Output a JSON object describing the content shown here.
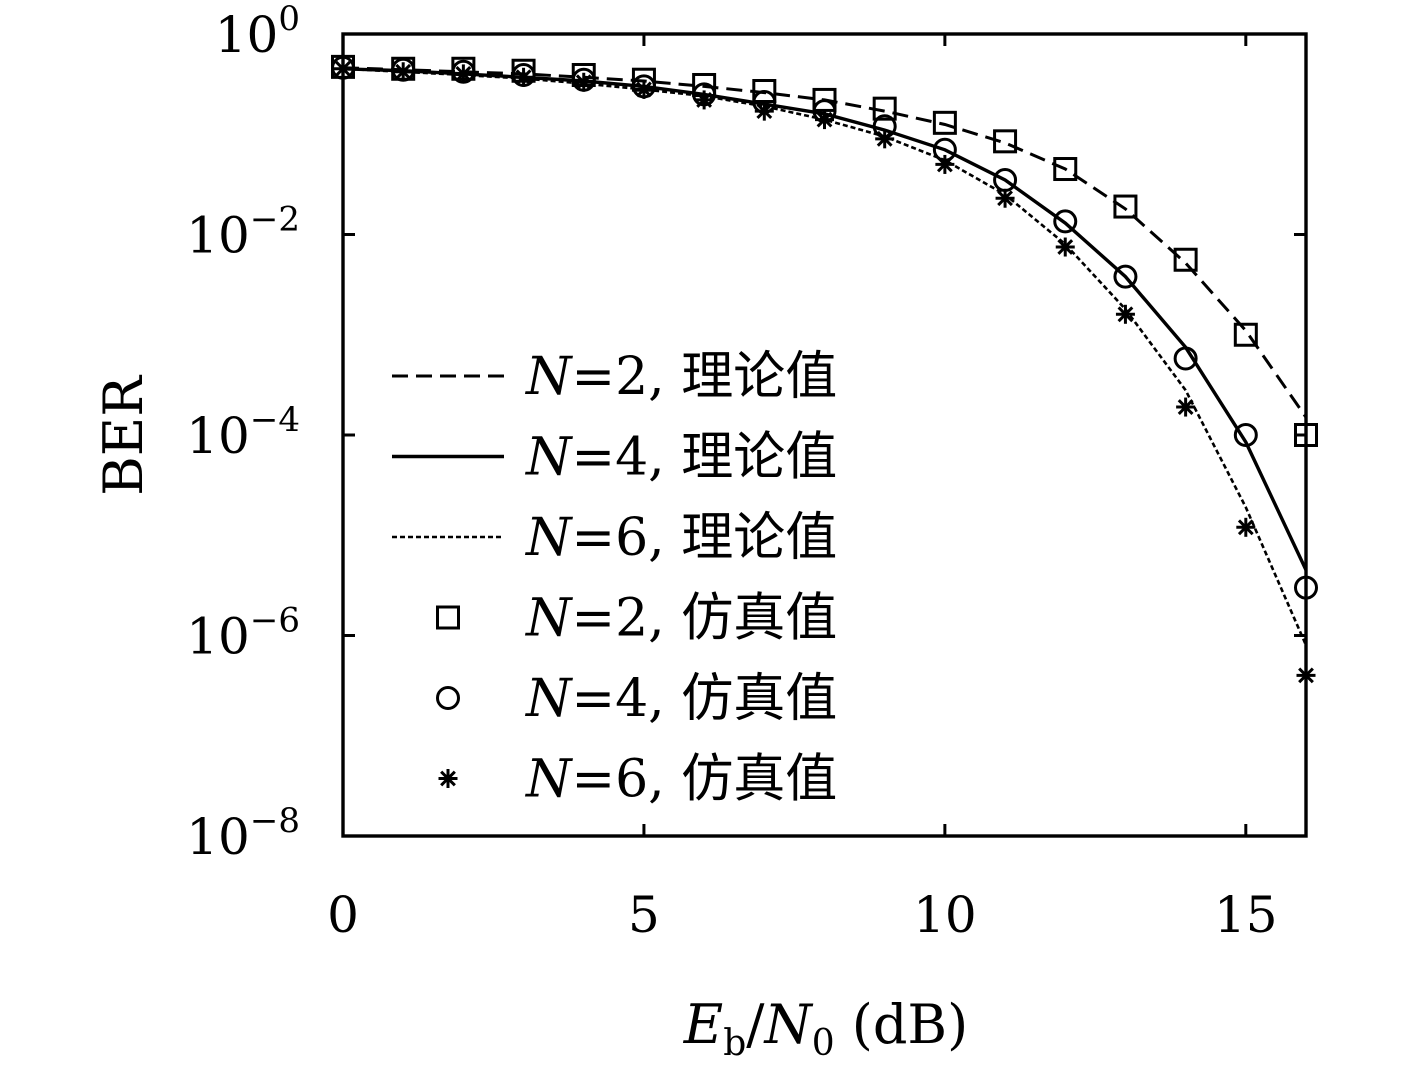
{
  "chart_data": {
    "type": "line",
    "xlabel": "E_b/N_0 (dB)",
    "ylabel": "BER",
    "xlim": [
      0,
      16
    ],
    "ylim_log10": [
      -8,
      0
    ],
    "yscale": "log",
    "x_ticks": [
      0,
      5,
      10,
      15
    ],
    "x_tick_labels": [
      "0",
      "5",
      "10",
      "15"
    ],
    "y_ticks_exponents": [
      0,
      -2,
      -4,
      -6,
      -8
    ],
    "y_tick_labels": [
      {
        "base": "10",
        "exp": "0"
      },
      {
        "base": "10",
        "exp": "−2"
      },
      {
        "base": "10",
        "exp": "−4"
      },
      {
        "base": "10",
        "exp": "−6"
      },
      {
        "base": "10",
        "exp": "−8"
      }
    ],
    "legend_position": "left",
    "x": [
      0,
      1,
      2,
      3,
      4,
      5,
      6,
      7,
      8,
      9,
      10,
      11,
      12,
      13,
      14,
      15,
      16
    ],
    "series": [
      {
        "name": "N=2, 理论值",
        "label_var": "N",
        "label_rest": "=2, 理论值",
        "kind": "line",
        "style": "dashed",
        "values": [
          0.46,
          0.44,
          0.42,
          0.4,
          0.37,
          0.34,
          0.3,
          0.26,
          0.22,
          0.17,
          0.125,
          0.082,
          0.045,
          0.018,
          0.0052,
          0.0011,
          0.00015
        ]
      },
      {
        "name": "N=4, 理论值",
        "label_var": "N",
        "label_rest": "=4, 理论值",
        "kind": "line",
        "style": "solid",
        "values": [
          0.45,
          0.43,
          0.4,
          0.37,
          0.34,
          0.3,
          0.25,
          0.2,
          0.16,
          0.11,
          0.07,
          0.035,
          0.013,
          0.0038,
          0.00075,
          8.5e-05,
          4.5e-06
        ]
      },
      {
        "name": "N=6, 理论值",
        "label_var": "N",
        "label_rest": "=6, 理论值",
        "kind": "line",
        "style": "dotted",
        "values": [
          0.45,
          0.42,
          0.39,
          0.36,
          0.32,
          0.28,
          0.24,
          0.19,
          0.14,
          0.095,
          0.055,
          0.025,
          0.008,
          0.0018,
          0.00028,
          1.9e-05,
          8e-07
        ]
      },
      {
        "name": "N=2, 仿真值",
        "label_var": "N",
        "label_rest": "=2, 仿真值",
        "kind": "marker",
        "marker": "square",
        "values": [
          0.47,
          0.45,
          0.45,
          0.43,
          0.39,
          0.35,
          0.31,
          0.27,
          0.22,
          0.18,
          0.13,
          0.085,
          0.045,
          0.019,
          0.0056,
          0.001,
          0.0001
        ]
      },
      {
        "name": "N=4, 仿真值",
        "label_var": "N",
        "label_rest": "=4, 仿真值",
        "kind": "marker",
        "marker": "circle",
        "values": [
          0.46,
          0.44,
          0.42,
          0.39,
          0.35,
          0.3,
          0.25,
          0.21,
          0.17,
          0.12,
          0.07,
          0.035,
          0.0135,
          0.0038,
          0.00058,
          0.0001,
          3e-06
        ]
      },
      {
        "name": "N=6, 仿真值",
        "label_var": "N",
        "label_rest": "=6, 仿真值",
        "kind": "marker",
        "marker": "asterisk",
        "values": [
          0.45,
          0.42,
          0.4,
          0.37,
          0.33,
          0.28,
          0.22,
          0.17,
          0.14,
          0.09,
          0.05,
          0.023,
          0.0075,
          0.0016,
          0.00019,
          1.2e-05,
          4e-07
        ]
      }
    ]
  }
}
